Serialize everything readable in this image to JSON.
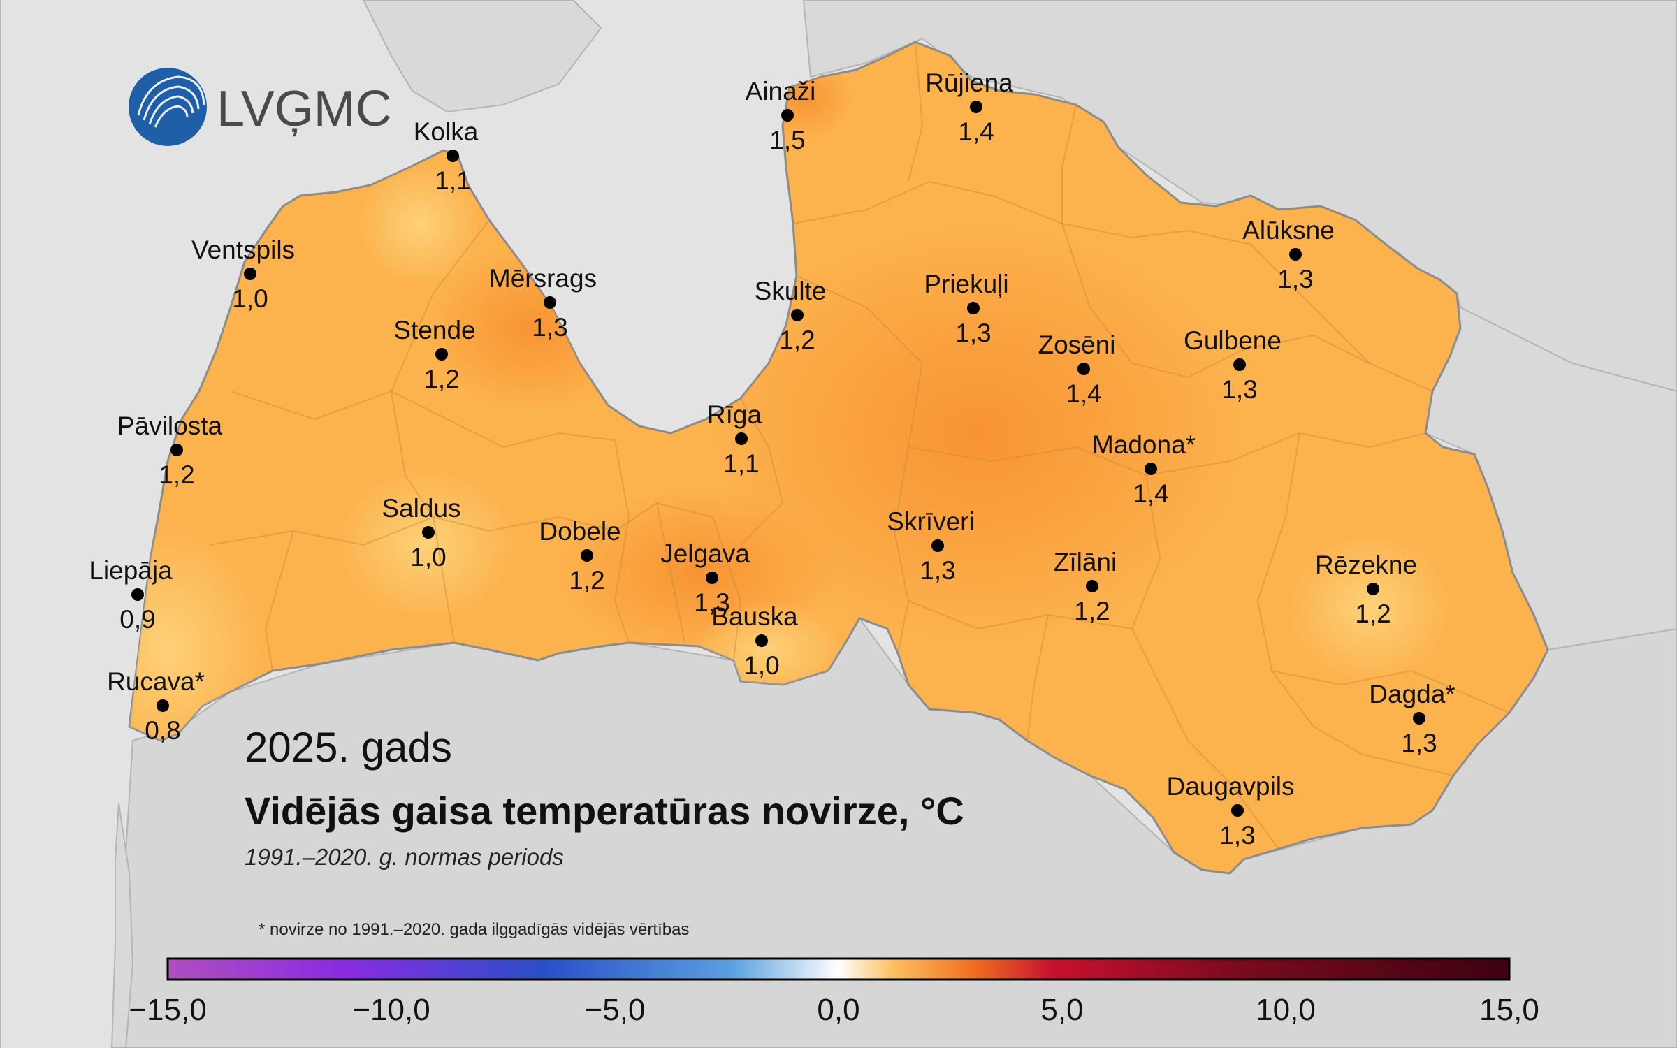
{
  "logo": {
    "text": "LVĢMC",
    "color": "#1f5fa8"
  },
  "title": {
    "year": "2025. gads",
    "main": "Vidējās gaisa temperatūras novirze, °C",
    "subtitle": "1991.–2020. g. normas periods",
    "footnote": "* novirze no 1991.–2020. gada ilggadīgās vidējās vērtības"
  },
  "colors": {
    "sea": "#e3e3e3",
    "land_other": "#d8d8d8",
    "water": "#f2f4f6",
    "latvia_base": "#fcb24d",
    "latvia_warm": "#f99a38",
    "latvia_cool": "#fdcb6b",
    "border": "#9a9a9a",
    "dot": "#000000"
  },
  "stations": [
    {
      "name": "Ainaži",
      "value": "1,5"
    },
    {
      "name": "Rūjiena",
      "value": "1,4"
    },
    {
      "name": "Kolka",
      "value": "1,1"
    },
    {
      "name": "Ventspils",
      "value": "1,0"
    },
    {
      "name": "Mērsrags",
      "value": "1,3"
    },
    {
      "name": "Skulte",
      "value": "1,2"
    },
    {
      "name": "Priekuļi",
      "value": "1,3"
    },
    {
      "name": "Alūksne",
      "value": "1,3"
    },
    {
      "name": "Stende",
      "value": "1,2"
    },
    {
      "name": "Zosēni",
      "value": "1,4"
    },
    {
      "name": "Gulbene",
      "value": "1,3"
    },
    {
      "name": "Pāvilosta",
      "value": "1,2"
    },
    {
      "name": "Rīga",
      "value": "1,1"
    },
    {
      "name": "Madona*",
      "value": "1,4"
    },
    {
      "name": "Saldus",
      "value": "1,0"
    },
    {
      "name": "Dobele",
      "value": "1,2"
    },
    {
      "name": "Skrīveri",
      "value": "1,3"
    },
    {
      "name": "Jelgava",
      "value": "1,3"
    },
    {
      "name": "Zīlāni",
      "value": "1,2"
    },
    {
      "name": "Rēzekne",
      "value": "1,2"
    },
    {
      "name": "Liepāja",
      "value": "0,9"
    },
    {
      "name": "Bauska",
      "value": "1,0"
    },
    {
      "name": "Rucava*",
      "value": "0,8"
    },
    {
      "name": "Dagda*",
      "value": "1,3"
    },
    {
      "name": "Daugavpils",
      "value": "1,3"
    }
  ],
  "colorbar": {
    "range": [
      -15,
      15
    ],
    "ticks": [
      "−15,0",
      "−10,0",
      "−5,0",
      "0,0",
      "5,0",
      "10,0",
      "15,0"
    ],
    "stops": [
      "#b04fc0",
      "#8a2be2",
      "#2a4fc8",
      "#5aa0e0",
      "#ffffff",
      "#fdc060",
      "#f07020",
      "#c8102e",
      "#7a0a1e",
      "#3d0210"
    ]
  }
}
